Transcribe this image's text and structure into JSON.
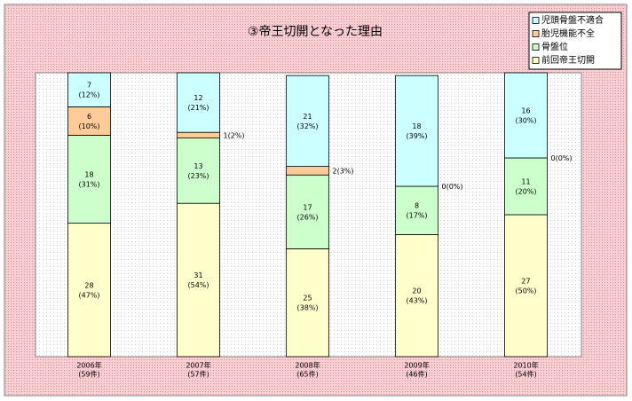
{
  "chart_data": {
    "type": "stacked_bar",
    "title": "③帝王切開となった理由",
    "categories": [
      "2006年",
      "2007年",
      "2008年",
      "2009年",
      "2010年"
    ],
    "category_totals": [
      "(59件)",
      "(57件)",
      "(65件)",
      "(46件)",
      "(54件)"
    ],
    "ylim": [
      0,
      100
    ],
    "legend": "top-right",
    "series": [
      {
        "name": "前回帝王切開",
        "color": "#ffffcc",
        "values": [
          47,
          54,
          38,
          43,
          50
        ],
        "counts": [
          28,
          31,
          25,
          20,
          27
        ],
        "value_labels": [
          "(47%)",
          "(54%)",
          "(38%)",
          "(43%)",
          "(50%)"
        ]
      },
      {
        "name": "骨盤位",
        "color": "#ccffcc",
        "values": [
          31,
          23,
          26,
          17,
          20
        ],
        "counts": [
          18,
          13,
          17,
          8,
          11
        ],
        "value_labels": [
          "(31%)",
          "(23%)",
          "(26%)",
          "(17%)",
          "(20%)"
        ]
      },
      {
        "name": "胎児機能不全",
        "color": "#ffcc99",
        "values": [
          10,
          2,
          3,
          0,
          0
        ],
        "counts": [
          6,
          1,
          2,
          0,
          0
        ],
        "value_labels": [
          "(10%)",
          "(2%)",
          "(3%)",
          "(0%)",
          "(0%)"
        ]
      },
      {
        "name": "児頭骨盤不適合",
        "color": "#ccffff",
        "values": [
          12,
          21,
          32,
          39,
          30
        ],
        "counts": [
          7,
          12,
          21,
          18,
          16
        ],
        "value_labels": [
          "(12%)",
          "(21%)",
          "(32%)",
          "(39%)",
          "(30%)"
        ]
      }
    ]
  }
}
